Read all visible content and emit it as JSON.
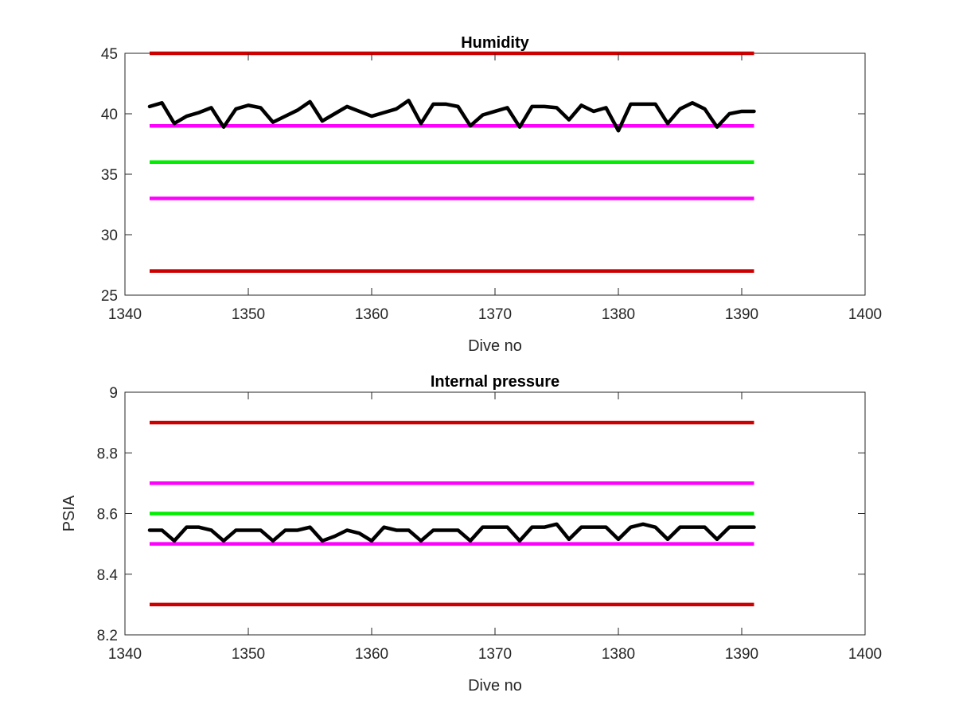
{
  "chart_data": [
    {
      "type": "line",
      "title": "Humidity",
      "xlabel": "Dive no",
      "ylabel": "",
      "xlim": [
        1340,
        1400
      ],
      "ylim": [
        25,
        45
      ],
      "xticks": [
        "1340",
        "1350",
        "1360",
        "1370",
        "1380",
        "1390",
        "1400"
      ],
      "yticks": [
        "25",
        "30",
        "35",
        "40",
        "45"
      ],
      "grid": false,
      "reference_lines": [
        {
          "y": 45,
          "x": [
            1342,
            1391
          ],
          "color": "#cc0000"
        },
        {
          "y": 39,
          "x": [
            1342,
            1391
          ],
          "color": "#ff00ff"
        },
        {
          "y": 36,
          "x": [
            1342,
            1391
          ],
          "color": "#00ee00"
        },
        {
          "y": 33,
          "x": [
            1342,
            1391
          ],
          "color": "#ff00ff"
        },
        {
          "y": 27,
          "x": [
            1342,
            1391
          ],
          "color": "#cc0000"
        }
      ],
      "series": [
        {
          "color": "#000000",
          "x": [
            1342,
            1343,
            1344,
            1345,
            1346,
            1347,
            1348,
            1349,
            1350,
            1351,
            1352,
            1353,
            1354,
            1355,
            1356,
            1357,
            1358,
            1359,
            1360,
            1361,
            1362,
            1363,
            1364,
            1365,
            1366,
            1367,
            1368,
            1369,
            1370,
            1371,
            1372,
            1373,
            1374,
            1375,
            1376,
            1377,
            1378,
            1379,
            1380,
            1381,
            1382,
            1383,
            1384,
            1385,
            1386,
            1387,
            1388,
            1389,
            1390,
            1391
          ],
          "values": [
            40.6,
            40.9,
            39.2,
            39.8,
            40.1,
            40.5,
            38.9,
            40.4,
            40.7,
            40.5,
            39.3,
            39.8,
            40.3,
            41.0,
            39.4,
            40.0,
            40.6,
            40.2,
            39.8,
            40.1,
            40.4,
            41.1,
            39.2,
            40.8,
            40.8,
            40.6,
            39.0,
            39.9,
            40.2,
            40.5,
            38.9,
            40.6,
            40.6,
            40.5,
            39.5,
            40.7,
            40.2,
            40.5,
            38.6,
            40.8,
            40.8,
            40.8,
            39.2,
            40.4,
            40.9,
            40.4,
            38.9,
            40.0,
            40.2,
            40.2
          ]
        }
      ]
    },
    {
      "type": "line",
      "title": "Internal pressure",
      "xlabel": "Dive no",
      "ylabel": "PSIA",
      "xlim": [
        1340,
        1400
      ],
      "ylim": [
        8.2,
        9.0
      ],
      "xticks": [
        "1340",
        "1350",
        "1360",
        "1370",
        "1380",
        "1390",
        "1400"
      ],
      "yticks": [
        "8.2",
        "8.4",
        "8.6",
        "8.8",
        "9"
      ],
      "grid": false,
      "reference_lines": [
        {
          "y": 8.9,
          "x": [
            1342,
            1391
          ],
          "color": "#cc0000"
        },
        {
          "y": 8.7,
          "x": [
            1342,
            1391
          ],
          "color": "#ff00ff"
        },
        {
          "y": 8.6,
          "x": [
            1342,
            1391
          ],
          "color": "#00ee00"
        },
        {
          "y": 8.5,
          "x": [
            1342,
            1391
          ],
          "color": "#ff00ff"
        },
        {
          "y": 8.3,
          "x": [
            1342,
            1391
          ],
          "color": "#cc0000"
        }
      ],
      "series": [
        {
          "color": "#000000",
          "x": [
            1342,
            1343,
            1344,
            1345,
            1346,
            1347,
            1348,
            1349,
            1350,
            1351,
            1352,
            1353,
            1354,
            1355,
            1356,
            1357,
            1358,
            1359,
            1360,
            1361,
            1362,
            1363,
            1364,
            1365,
            1366,
            1367,
            1368,
            1369,
            1370,
            1371,
            1372,
            1373,
            1374,
            1375,
            1376,
            1377,
            1378,
            1379,
            1380,
            1381,
            1382,
            1383,
            1384,
            1385,
            1386,
            1387,
            1388,
            1389,
            1390,
            1391
          ],
          "values": [
            8.545,
            8.545,
            8.51,
            8.555,
            8.555,
            8.545,
            8.51,
            8.545,
            8.545,
            8.545,
            8.51,
            8.545,
            8.545,
            8.555,
            8.51,
            8.525,
            8.545,
            8.535,
            8.51,
            8.555,
            8.545,
            8.545,
            8.51,
            8.545,
            8.545,
            8.545,
            8.51,
            8.555,
            8.555,
            8.555,
            8.51,
            8.555,
            8.555,
            8.565,
            8.515,
            8.555,
            8.555,
            8.555,
            8.515,
            8.555,
            8.565,
            8.555,
            8.515,
            8.555,
            8.555,
            8.555,
            8.515,
            8.555,
            8.555,
            8.555
          ]
        }
      ]
    }
  ]
}
